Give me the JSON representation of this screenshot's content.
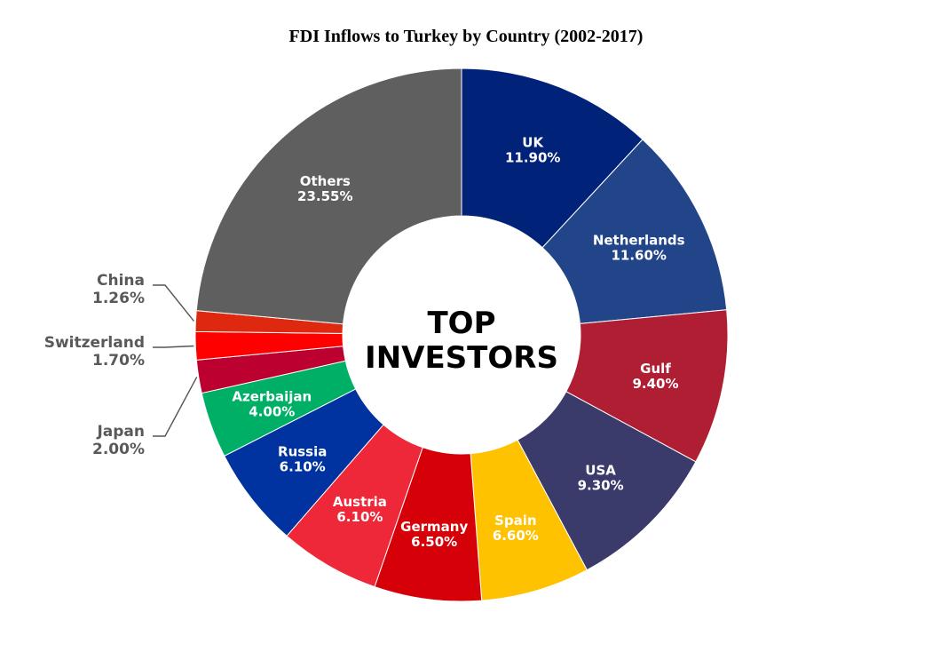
{
  "chart_data": {
    "type": "pie",
    "donut": true,
    "title": "FDI Inflows to Turkey by Country (2002-2017)",
    "center_text": [
      "TOP",
      "INVESTORS"
    ],
    "start_angle_deg": 0,
    "direction": "clockwise",
    "slices": [
      {
        "label": "UK",
        "value": 11.9,
        "display": "11.90%",
        "color": "#002279",
        "label_position": "inside"
      },
      {
        "label": "Netherlands",
        "value": 11.6,
        "display": "11.60%",
        "color": "#22458A",
        "label_position": "inside"
      },
      {
        "label": "Gulf",
        "value": 9.4,
        "display": "9.40%",
        "color": "#AF1E33",
        "label_position": "inside"
      },
      {
        "label": "USA",
        "value": 9.3,
        "display": "9.30%",
        "color": "#3A3A6B",
        "label_position": "inside"
      },
      {
        "label": "Spain",
        "value": 6.6,
        "display": "6.60%",
        "color": "#FFC200",
        "label_position": "inside"
      },
      {
        "label": "Germany",
        "value": 6.5,
        "display": "6.50%",
        "color": "#D60009",
        "label_position": "inside"
      },
      {
        "label": "Austria",
        "value": 6.1,
        "display": "6.10%",
        "color": "#EE2838",
        "label_position": "inside"
      },
      {
        "label": "Russia",
        "value": 6.1,
        "display": "6.10%",
        "color": "#0033A0",
        "label_position": "inside"
      },
      {
        "label": "Azerbaijan",
        "value": 4.0,
        "display": "4.00%",
        "color": "#00AF66",
        "label_position": "inside"
      },
      {
        "label": "Japan",
        "value": 2.0,
        "display": "2.00%",
        "color": "#BC0030",
        "label_position": "outside"
      },
      {
        "label": "Switzerland",
        "value": 1.7,
        "display": "1.70%",
        "color": "#FF0000",
        "label_position": "outside"
      },
      {
        "label": "China",
        "value": 1.26,
        "display": "1.26%",
        "color": "#DE2910",
        "label_position": "outside"
      },
      {
        "label": "Others",
        "value": 23.55,
        "display": "23.55%",
        "color": "#5F5F5F",
        "label_position": "inside"
      }
    ]
  }
}
